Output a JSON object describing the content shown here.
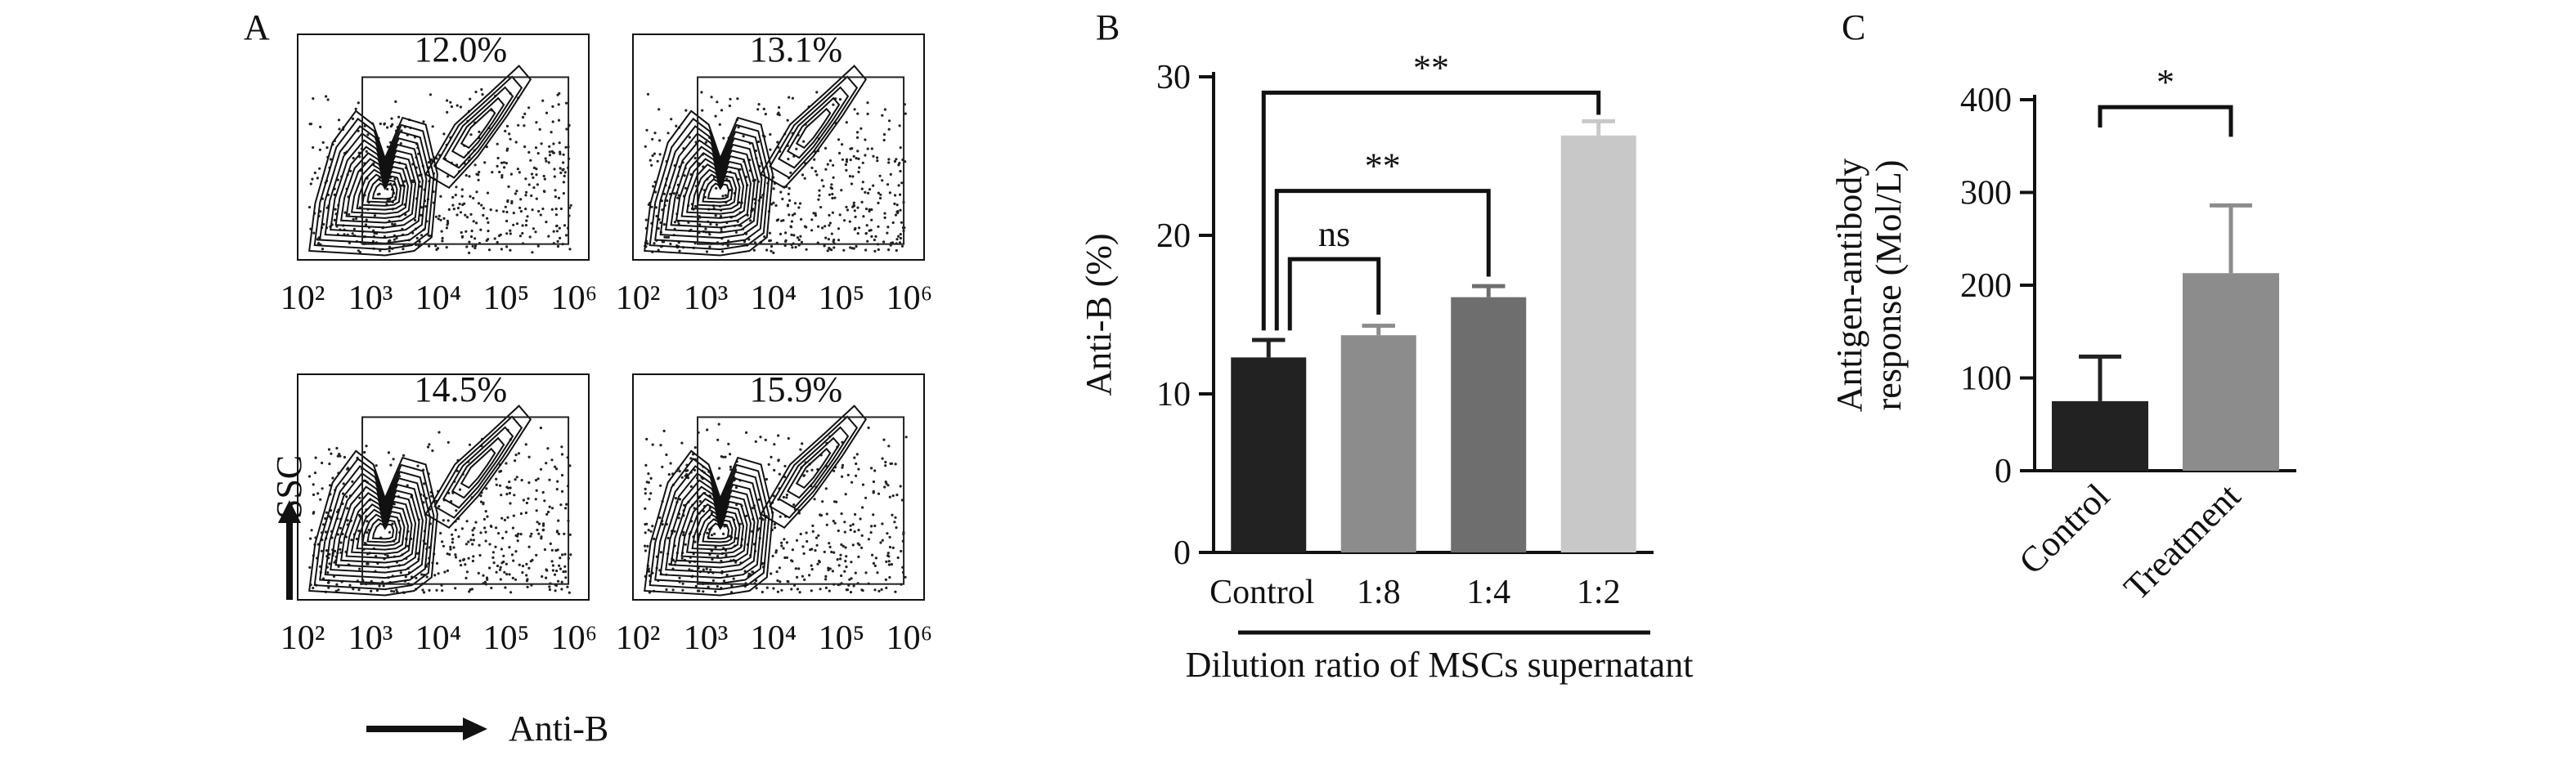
{
  "chart_data": [
    {
      "type": "contour",
      "panel_label": "A",
      "xlabel": "Anti-B",
      "ylabel": "SSC",
      "x_ticks": [
        "10²",
        "10³",
        "10⁴",
        "10⁵",
        "10⁶"
      ],
      "x_scale": "log",
      "xlim": [
        100,
        1000000
      ],
      "plots": [
        {
          "gate_percent": "12.0%"
        },
        {
          "gate_percent": "13.1%"
        },
        {
          "gate_percent": "14.5%"
        },
        {
          "gate_percent": "15.9%"
        }
      ]
    },
    {
      "type": "bar",
      "panel_label": "B",
      "title": "",
      "ylabel": "Anti-B (%)",
      "xlabel": "Dilution ratio of MSCs supernatant",
      "ylim": [
        0,
        30
      ],
      "y_ticks": [
        0,
        10,
        20,
        30
      ],
      "categories": [
        "Control",
        "1:8",
        "1:4",
        "1:2"
      ],
      "values": [
        12.3,
        13.7,
        16.1,
        26.3
      ],
      "errors": [
        1.1,
        0.6,
        0.7,
        0.9
      ],
      "colors": [
        "#222222",
        "#8c8c8c",
        "#6e6e6e",
        "#c8c8c8"
      ],
      "significance": [
        {
          "from": "Control",
          "to": "1:8",
          "label": "ns"
        },
        {
          "from": "Control",
          "to": "1:4",
          "label": "**"
        },
        {
          "from": "Control",
          "to": "1:2",
          "label": "**"
        }
      ]
    },
    {
      "type": "bar",
      "panel_label": "C",
      "title": "",
      "ylabel": "Antigen-antibody response (Mol/L)",
      "xlabel": "",
      "ylim": [
        0,
        400
      ],
      "y_ticks": [
        0,
        100,
        200,
        300,
        400
      ],
      "categories": [
        "Control",
        "Treatment"
      ],
      "values": [
        75,
        213
      ],
      "errors": [
        48,
        73
      ],
      "colors": [
        "#222222",
        "#8c8c8c"
      ],
      "significance": [
        {
          "from": "Control",
          "to": "Treatment",
          "label": "*"
        }
      ]
    }
  ]
}
